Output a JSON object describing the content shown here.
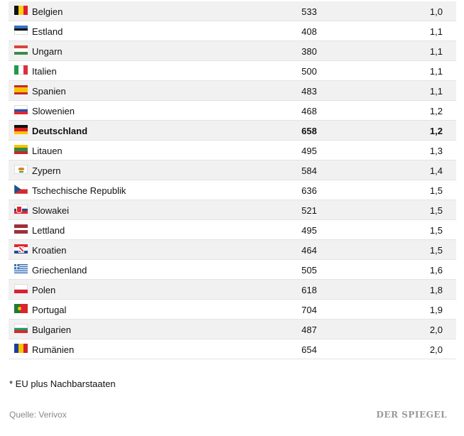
{
  "rows": [
    {
      "name": "Belgien",
      "value1": "533",
      "value2": "1,0",
      "flag": "be"
    },
    {
      "name": "Estland",
      "value1": "408",
      "value2": "1,1",
      "flag": "ee"
    },
    {
      "name": "Ungarn",
      "value1": "380",
      "value2": "1,1",
      "flag": "hu"
    },
    {
      "name": "Italien",
      "value1": "500",
      "value2": "1,1",
      "flag": "it"
    },
    {
      "name": "Spanien",
      "value1": "483",
      "value2": "1,1",
      "flag": "es"
    },
    {
      "name": "Slowenien",
      "value1": "468",
      "value2": "1,2",
      "flag": "si"
    },
    {
      "name": "Deutschland",
      "value1": "658",
      "value2": "1,2",
      "flag": "de"
    },
    {
      "name": "Litauen",
      "value1": "495",
      "value2": "1,3",
      "flag": "lt"
    },
    {
      "name": "Zypern",
      "value1": "584",
      "value2": "1,4",
      "flag": "cy"
    },
    {
      "name": "Tschechische Republik",
      "value1": "636",
      "value2": "1,5",
      "flag": "cz"
    },
    {
      "name": "Slowakei",
      "value1": "521",
      "value2": "1,5",
      "flag": "sk"
    },
    {
      "name": "Lettland",
      "value1": "495",
      "value2": "1,5",
      "flag": "lv"
    },
    {
      "name": "Kroatien",
      "value1": "464",
      "value2": "1,5",
      "flag": "hr"
    },
    {
      "name": "Griechenland",
      "value1": "505",
      "value2": "1,6",
      "flag": "gr"
    },
    {
      "name": "Polen",
      "value1": "618",
      "value2": "1,8",
      "flag": "pl"
    },
    {
      "name": "Portugal",
      "value1": "704",
      "value2": "1,9",
      "flag": "pt"
    },
    {
      "name": "Bulgarien",
      "value1": "487",
      "value2": "2,0",
      "flag": "bg"
    },
    {
      "name": "Rumänien",
      "value1": "654",
      "value2": "2,0",
      "flag": "ro"
    }
  ],
  "footnote": "* EU plus Nachbarstaaten",
  "source": "Quelle: Verivox",
  "brand": "DER SPIEGEL",
  "colors": {
    "shaded_row": "#f1f1f1",
    "divider": "#e3e3e3",
    "source_text": "#888888"
  }
}
